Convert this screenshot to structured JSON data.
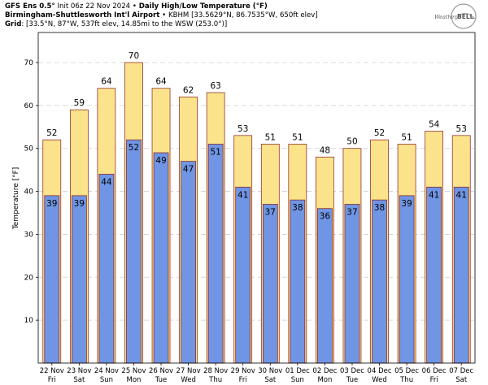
{
  "header": {
    "line1_bold": "GFS Ens 0.5°",
    "line1_rest": " Init 06z 22 Nov 2024",
    "line1_sep": " • ",
    "line1_bold2": "Daily High/Low Temperature (°F)",
    "line2_bold": "Birmingham-Shuttlesworth Int'l Airport",
    "line2_rest": " • KBHM [33.5629°N, 86.7535°W, 650ft elev]",
    "line3_bold": "Grid",
    "line3_rest": ": [33.5°N, 87°W, 537ft elev, 14.85mi to the WSW (253.0°)]"
  },
  "logo": {
    "text_left": "Weather",
    "text_right": "BELL"
  },
  "colors": {
    "high": "#fbe38c",
    "low": "#6f95e4",
    "edge": "#8a1a1a",
    "grid": "#cccccc"
  },
  "chart_data": {
    "type": "bar",
    "title": "",
    "ylabel": "Temperature [°F]",
    "xlabel": "",
    "ylim": [
      0,
      77
    ],
    "yticks": [
      10,
      20,
      30,
      40,
      50,
      60,
      70
    ],
    "grid": true,
    "categories": [
      "22 Nov",
      "23 Nov",
      "24 Nov",
      "25 Nov",
      "26 Nov",
      "27 Nov",
      "28 Nov",
      "29 Nov",
      "30 Nov",
      "01 Dec",
      "02 Dec",
      "03 Dec",
      "04 Dec",
      "05 Dec",
      "06 Dec",
      "07 Dec"
    ],
    "weekdays": [
      "Fri",
      "Sat",
      "Sun",
      "Mon",
      "Tue",
      "Wed",
      "Thu",
      "Fri",
      "Sat",
      "Sun",
      "Mon",
      "Tue",
      "Wed",
      "Thu",
      "Fri",
      "Sat"
    ],
    "series": [
      {
        "name": "High",
        "values": [
          52,
          59,
          64,
          70,
          64,
          62,
          63,
          53,
          51,
          51,
          48,
          50,
          52,
          51,
          54,
          53
        ]
      },
      {
        "name": "Low",
        "values": [
          39,
          39,
          44,
          52,
          49,
          47,
          51,
          41,
          37,
          38,
          36,
          37,
          38,
          39,
          41,
          41
        ]
      }
    ]
  }
}
